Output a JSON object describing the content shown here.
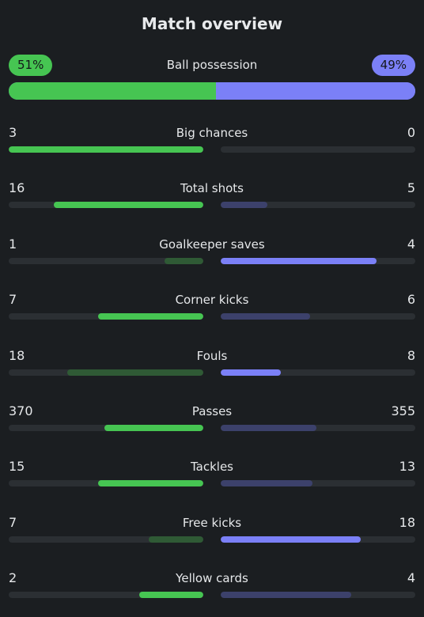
{
  "header": {
    "title": "Match overview"
  },
  "possession": {
    "label": "Ball possession",
    "home": "51%",
    "away": "49%",
    "home_fraction": 0.51
  },
  "colors": {
    "home_strong": "#46c552",
    "home_weak": "#2f5a35",
    "away_strong": "#7b80f7",
    "away_weak": "#3c416b"
  },
  "stats": [
    {
      "label": "Big chances",
      "home": "3",
      "away": "0",
      "home_fill": 1.0,
      "away_fill": 0.0,
      "leader": "home"
    },
    {
      "label": "Total shots",
      "home": "16",
      "away": "5",
      "home_fill": 0.77,
      "away_fill": 0.24,
      "leader": "home"
    },
    {
      "label": "Goalkeeper saves",
      "home": "1",
      "away": "4",
      "home_fill": 0.2,
      "away_fill": 0.8,
      "leader": "away"
    },
    {
      "label": "Corner kicks",
      "home": "7",
      "away": "6",
      "home_fill": 0.54,
      "away_fill": 0.46,
      "leader": "home"
    },
    {
      "label": "Fouls",
      "home": "18",
      "away": "8",
      "home_fill": 0.7,
      "away_fill": 0.31,
      "leader": "away"
    },
    {
      "label": "Passes",
      "home": "370",
      "away": "355",
      "home_fill": 0.51,
      "away_fill": 0.49,
      "leader": "home"
    },
    {
      "label": "Tackles",
      "home": "15",
      "away": "13",
      "home_fill": 0.54,
      "away_fill": 0.47,
      "leader": "home"
    },
    {
      "label": "Free kicks",
      "home": "7",
      "away": "18",
      "home_fill": 0.28,
      "away_fill": 0.72,
      "leader": "away"
    },
    {
      "label": "Yellow cards",
      "home": "2",
      "away": "4",
      "home_fill": 0.33,
      "away_fill": 0.67,
      "leader": "home"
    }
  ]
}
